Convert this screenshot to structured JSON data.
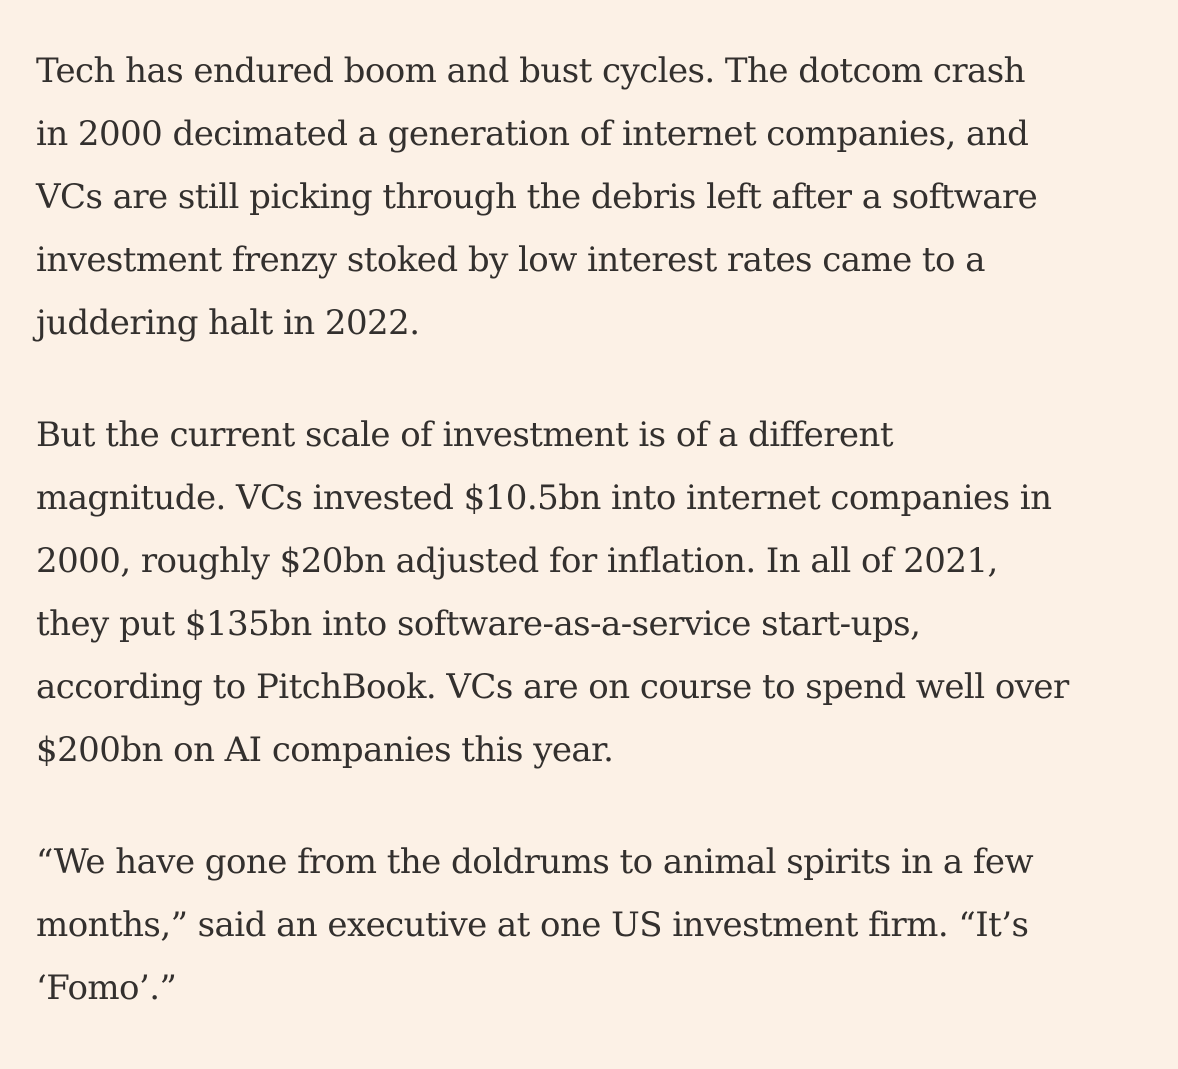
{
  "article": {
    "paragraphs": [
      {
        "lines": [
          "Tech has endured boom and bust cycles. The dotcom crash",
          "in 2000 decimated a generation of internet companies, and",
          "VCs are still picking through the debris left after a software",
          "investment frenzy stoked by low interest rates came to a",
          "juddering halt in 2022."
        ]
      },
      {
        "lines": [
          "But the current scale of investment is of a different",
          "magnitude. VCs invested $10.5bn into internet companies in",
          "2000, roughly $20bn adjusted for inflation. In all of 2021,",
          "they put $135bn into software-as-a-service start-ups,",
          "according to PitchBook. VCs are on course to spend well over",
          "$200bn on AI companies this year."
        ]
      },
      {
        "lines": [
          "“We have gone from the doldrums to animal spirits in a few",
          "months,” said an executive at one US investment firm. “It’s",
          "‘Fomo’.”"
        ]
      }
    ]
  }
}
